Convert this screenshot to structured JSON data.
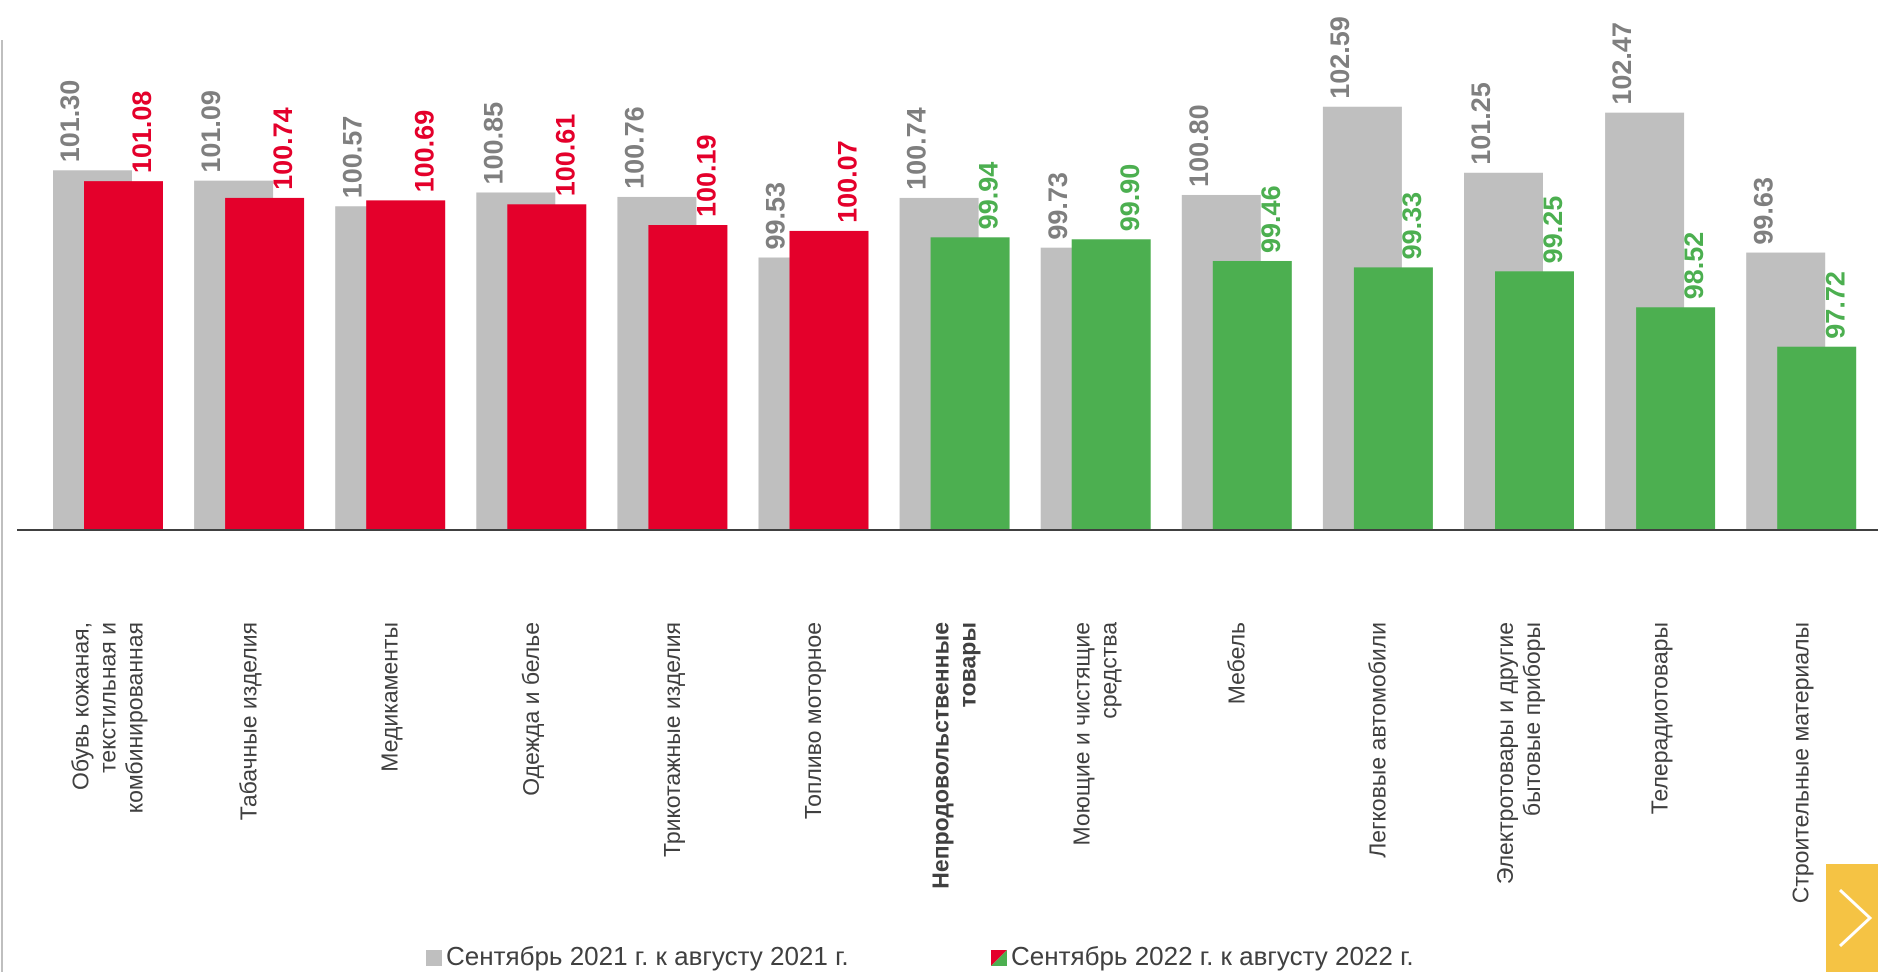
{
  "chart_data": {
    "type": "bar",
    "categories": [
      "Обувь кожаная, текстильная и комбинированная",
      "Табачные изделия",
      "Медикаменты",
      "Одежда и белье",
      "Трикотажные изделия",
      "Топливо моторное",
      "Непродовольственные товары",
      "Моющие и чистящие средства",
      "Мебель",
      "Легковые автомобили",
      "Электротовары и другие бытовые приборы",
      "Телерадиотовары",
      "Строительные материалы"
    ],
    "highlight_category": 6,
    "series": [
      {
        "name": "Сентябрь 2021 г. к августу 2021 г.",
        "color": "#bfbfbf",
        "label_color": "#7f7f7f",
        "values": [
          101.3,
          101.09,
          100.57,
          100.85,
          100.76,
          99.53,
          100.74,
          99.73,
          100.8,
          102.59,
          101.25,
          102.47,
          99.63
        ],
        "value_labels": [
          "101.30",
          "101.09",
          "100.57",
          "100.85",
          "100.76",
          "99.53",
          "100.74",
          "99.73",
          "100.80",
          "102.59",
          "101.25",
          "102.47",
          "99.63"
        ]
      },
      {
        "name": "Сентябрь 2022 г. к августу 2022 г.",
        "color": "#e4002b",
        "colors": [
          "#e4002b",
          "#e4002b",
          "#e4002b",
          "#e4002b",
          "#e4002b",
          "#e4002b",
          "#4caf50",
          "#4caf50",
          "#4caf50",
          "#4caf50",
          "#4caf50",
          "#4caf50",
          "#4caf50"
        ],
        "values": [
          101.08,
          100.74,
          100.69,
          100.61,
          100.19,
          100.07,
          99.94,
          99.9,
          99.46,
          99.33,
          99.25,
          98.52,
          97.72
        ],
        "value_labels": [
          "101.08",
          "100.74",
          "100.69",
          "100.61",
          "100.19",
          "100.07",
          "99.94",
          "99.90",
          "99.46",
          "99.33",
          "99.25",
          "98.52",
          "97.72"
        ]
      }
    ],
    "ylim": [
      94,
      105
    ]
  }
}
